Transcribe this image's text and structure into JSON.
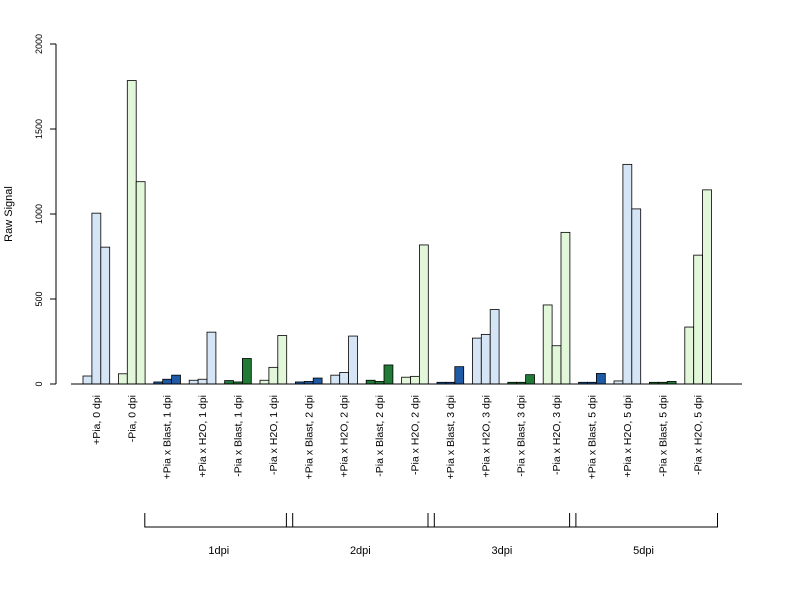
{
  "chart_data": {
    "type": "bar",
    "ylabel": "Raw Signal",
    "ylim": [
      0,
      2000
    ],
    "yticks": [
      0,
      500,
      1000,
      1500,
      2000
    ],
    "colors": {
      "light_blue": "#d6e5f5",
      "dark_blue": "#1f5aa6",
      "light_green": "#e2f6da",
      "dark_green": "#217a35"
    },
    "groups": [
      {
        "label": "+Pia, 0 dpi",
        "values": [
          47,
          1005,
          805
        ],
        "colors": [
          "light_blue",
          "light_blue",
          "light_blue"
        ]
      },
      {
        "label": "-Pia, 0 dpi",
        "values": [
          60,
          1785,
          1190
        ],
        "colors": [
          "light_green",
          "light_green",
          "light_green"
        ]
      },
      {
        "label": "+Pia x Blast, 1 dpi",
        "values": [
          12,
          28,
          52
        ],
        "colors": [
          "dark_blue",
          "dark_blue",
          "dark_blue"
        ]
      },
      {
        "label": "+Pia x H2O, 1 dpi",
        "values": [
          22,
          28,
          305
        ],
        "colors": [
          "light_blue",
          "light_blue",
          "light_blue"
        ]
      },
      {
        "label": "-Pia x Blast, 1 dpi",
        "values": [
          20,
          12,
          150
        ],
        "colors": [
          "dark_green",
          "dark_green",
          "dark_green"
        ]
      },
      {
        "label": "-Pia x H2O, 1 dpi",
        "values": [
          22,
          98,
          285
        ],
        "colors": [
          "light_green",
          "light_green",
          "light_green"
        ]
      },
      {
        "label": "+Pia x Blast, 2 dpi",
        "values": [
          12,
          15,
          35
        ],
        "colors": [
          "dark_blue",
          "dark_blue",
          "dark_blue"
        ]
      },
      {
        "label": "+Pia x H2O, 2 dpi",
        "values": [
          52,
          68,
          282
        ],
        "colors": [
          "light_blue",
          "light_blue",
          "light_blue"
        ]
      },
      {
        "label": "-Pia x Blast, 2 dpi",
        "values": [
          22,
          15,
          112
        ],
        "colors": [
          "dark_green",
          "dark_green",
          "dark_green"
        ]
      },
      {
        "label": "-Pia x H2O, 2 dpi",
        "values": [
          40,
          45,
          818
        ],
        "colors": [
          "light_green",
          "light_green",
          "light_green"
        ]
      },
      {
        "label": "+Pia x Blast, 3 dpi",
        "values": [
          10,
          10,
          102
        ],
        "colors": [
          "dark_blue",
          "dark_blue",
          "dark_blue"
        ]
      },
      {
        "label": "+Pia x H2O, 3 dpi",
        "values": [
          270,
          292,
          438
        ],
        "colors": [
          "light_blue",
          "light_blue",
          "light_blue"
        ]
      },
      {
        "label": "-Pia x Blast, 3 dpi",
        "values": [
          10,
          10,
          55
        ],
        "colors": [
          "dark_green",
          "dark_green",
          "dark_green"
        ]
      },
      {
        "label": "-Pia x H2O, 3 dpi",
        "values": [
          465,
          225,
          892
        ],
        "colors": [
          "light_green",
          "light_green",
          "light_green"
        ]
      },
      {
        "label": "+Pia x Blast, 5 dpi",
        "values": [
          10,
          10,
          62
        ],
        "colors": [
          "dark_blue",
          "dark_blue",
          "dark_blue"
        ]
      },
      {
        "label": "+Pia x H2O, 5 dpi",
        "values": [
          18,
          1292,
          1030
        ],
        "colors": [
          "light_blue",
          "light_blue",
          "light_blue"
        ]
      },
      {
        "label": "-Pia x Blast, 5 dpi",
        "values": [
          10,
          10,
          15
        ],
        "colors": [
          "dark_green",
          "dark_green",
          "dark_green"
        ]
      },
      {
        "label": "-Pia x H2O, 5 dpi",
        "values": [
          335,
          758,
          1142
        ],
        "colors": [
          "light_green",
          "light_green",
          "light_green"
        ]
      }
    ],
    "group_brackets": [
      {
        "label": "1dpi",
        "from": 2,
        "to": 5
      },
      {
        "label": "2dpi",
        "from": 6,
        "to": 9
      },
      {
        "label": "3dpi",
        "from": 10,
        "to": 13
      },
      {
        "label": "5dpi",
        "from": 14,
        "to": 17
      }
    ]
  }
}
